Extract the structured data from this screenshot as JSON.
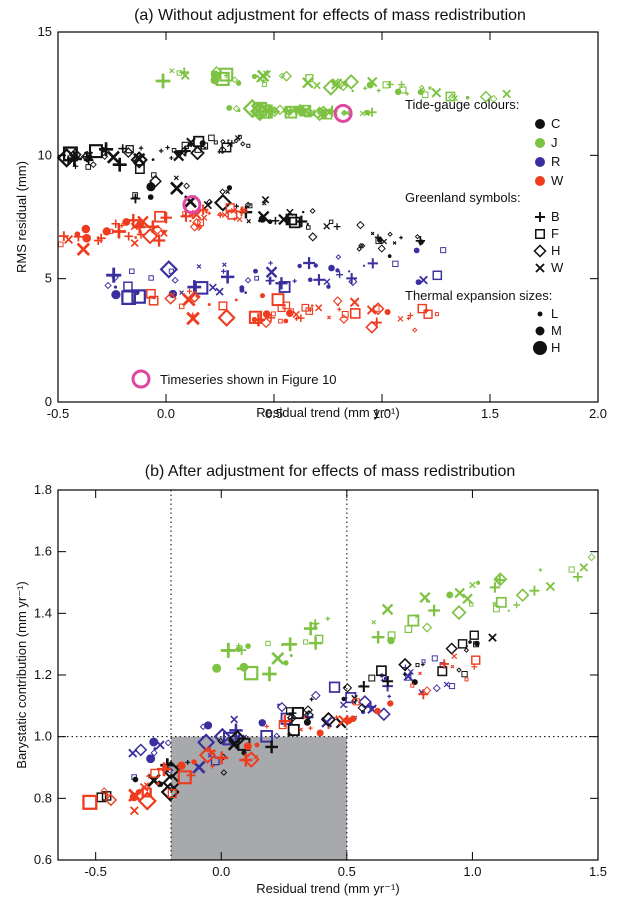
{
  "colors": {
    "C": "#111111",
    "J": "#7dc242",
    "R": "#3a2f9f",
    "W": "#ef3b1e",
    "highlight": "#e0479e",
    "shade": "#a7a9ac"
  },
  "legend": {
    "colours_title": "Tide-gauge colours:",
    "colours": [
      {
        "key": "C",
        "label": "C"
      },
      {
        "key": "J",
        "label": "J"
      },
      {
        "key": "R",
        "label": "R"
      },
      {
        "key": "W",
        "label": "W"
      }
    ],
    "symbols_title": "Greenland symbols:",
    "symbols": [
      {
        "key": "B",
        "label": "B",
        "icon": "plus"
      },
      {
        "key": "F",
        "label": "F",
        "icon": "square"
      },
      {
        "key": "H",
        "label": "H",
        "icon": "diamond"
      },
      {
        "key": "W",
        "label": "W",
        "icon": "cross"
      }
    ],
    "sizes_title": "Thermal expansion sizes:",
    "sizes": [
      {
        "key": "L",
        "label": "L"
      },
      {
        "key": "M",
        "label": "M"
      },
      {
        "key": "H",
        "label": "H"
      }
    ],
    "highlight_label": "Timeseries shown in Figure 10"
  },
  "chart_data": [
    {
      "type": "scatter",
      "title": "(a) Without adjustment for effects of mass redistribution",
      "xlabel": "Residual trend (mm yr⁻¹)",
      "ylabel": "RMS residual (mm)",
      "xlim": [
        -0.5,
        2.0
      ],
      "ylim": [
        0,
        15
      ],
      "xticks": [
        "-0.5",
        "0.0",
        "0.5",
        "1.0",
        "1.5",
        "2.0"
      ],
      "yticks": [
        "0",
        "5",
        "10",
        "15"
      ],
      "highlighted_points": [
        {
          "x": 0.82,
          "y": 11.7
        },
        {
          "x": 0.12,
          "y": 8.0
        }
      ],
      "series": [
        {
          "name": "J",
          "line": [
            [
              -0.12,
              13.3
            ],
            [
              1.55,
              12.5
            ]
          ],
          "y_spread": 0.55
        },
        {
          "name": "J",
          "line": [
            [
              0.35,
              11.85
            ],
            [
              0.9,
              11.7
            ]
          ],
          "y_spread": 0.15
        },
        {
          "name": "C",
          "line": [
            [
              -0.45,
              9.8
            ],
            [
              0.35,
              10.5
            ]
          ],
          "y_spread": 0.7
        },
        {
          "name": "C",
          "line": [
            [
              -0.15,
              8.9
            ],
            [
              1.15,
              6.3
            ]
          ],
          "y_spread": 1.2
        },
        {
          "name": "W",
          "line": [
            [
              -0.45,
              6.4
            ],
            [
              0.35,
              7.6
            ]
          ],
          "y_spread": 0.9
        },
        {
          "name": "R",
          "line": [
            [
              -0.3,
              4.6
            ],
            [
              1.3,
              5.6
            ]
          ],
          "y_spread": 1.3
        },
        {
          "name": "W",
          "line": [
            [
              -0.05,
              4.0
            ],
            [
              1.2,
              3.4
            ]
          ],
          "y_spread": 1.1
        }
      ]
    },
    {
      "type": "scatter",
      "title": "(b) After adjustment for effects of mass redistribution",
      "xlabel": "Residual trend (mm yr⁻¹)",
      "ylabel": "Barystatic contribution (mm yr⁻¹)",
      "xlim": [
        -0.65,
        1.5
      ],
      "ylim": [
        0.6,
        1.8
      ],
      "xticks": [
        "-0.5",
        "0.0",
        "0.5",
        "1.0",
        "1.5"
      ],
      "yticks": [
        "0.6",
        "0.8",
        "1.0",
        "1.2",
        "1.4",
        "1.6",
        "1.8"
      ],
      "reference_lines": {
        "x": [
          -0.2,
          0.5
        ],
        "y": [
          1.0
        ]
      },
      "shaded_region": {
        "x": [
          -0.2,
          0.5
        ],
        "y": [
          0.6,
          1.0
        ]
      },
      "series": [
        {
          "name": "J",
          "line": [
            [
              -0.1,
              1.2
            ],
            [
              1.5,
              1.55
            ]
          ],
          "y_spread": 0.12
        },
        {
          "name": "R",
          "line": [
            [
              -0.4,
              0.9
            ],
            [
              0.9,
              1.2
            ]
          ],
          "y_spread": 0.13
        },
        {
          "name": "C",
          "line": [
            [
              -0.5,
              0.78
            ],
            [
              1.05,
              1.3
            ]
          ],
          "y_spread": 0.1
        },
        {
          "name": "W",
          "line": [
            [
              -0.55,
              0.76
            ],
            [
              1.05,
              1.25
            ]
          ],
          "y_spread": 0.1
        }
      ]
    }
  ]
}
